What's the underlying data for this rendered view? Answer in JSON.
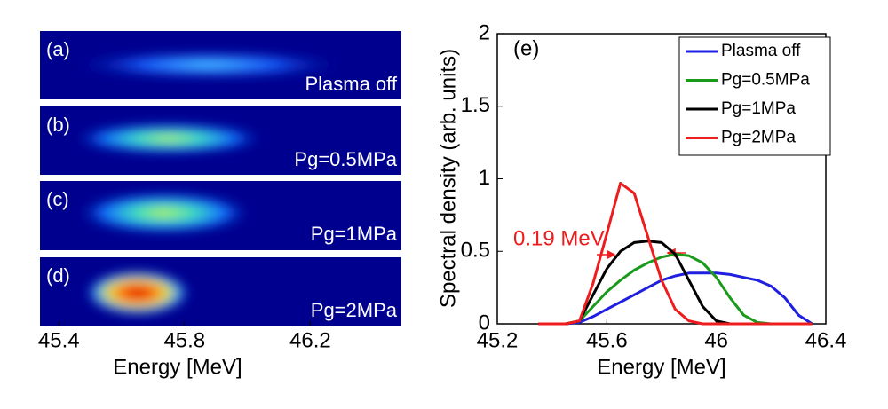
{
  "chart_data": [
    {
      "type": "image-strip",
      "panels": [
        {
          "label": "(a)",
          "caption": "Plasma off"
        },
        {
          "label": "(b)",
          "caption": "Pg=0.5MPa"
        },
        {
          "label": "(c)",
          "caption": "Pg=1MPa"
        },
        {
          "label": "(d)",
          "caption": "Pg=2MPa"
        }
      ],
      "xlabel": "Energy [MeV]",
      "xlim": [
        45.34,
        46.49
      ],
      "xticks": [
        45.4,
        45.8,
        46.2
      ]
    },
    {
      "type": "line",
      "panel_label": "(e)",
      "xlabel": "Energy [MeV]",
      "ylabel": "Spectral density (arb. units)",
      "xlim": [
        45.2,
        46.4
      ],
      "xticks": [
        45.2,
        45.6,
        46,
        46.4
      ],
      "ylim": [
        0,
        2
      ],
      "yticks": [
        0,
        0.5,
        1,
        1.5,
        2
      ],
      "legend": "upper right",
      "annotation": "0.19 MeV",
      "x": [
        45.35,
        45.4,
        45.45,
        45.5,
        45.55,
        45.6,
        45.65,
        45.7,
        45.75,
        45.8,
        45.85,
        45.9,
        45.95,
        46.0,
        46.05,
        46.1,
        46.15,
        46.2,
        46.25,
        46.3,
        46.35
      ],
      "series": [
        {
          "name": "Plasma off",
          "color": "#1f1fe0",
          "values": [
            0,
            0,
            0,
            0.01,
            0.05,
            0.1,
            0.15,
            0.2,
            0.25,
            0.3,
            0.33,
            0.35,
            0.35,
            0.35,
            0.34,
            0.32,
            0.3,
            0.26,
            0.18,
            0.06,
            0
          ]
        },
        {
          "name": "Pg=0.5MPa",
          "color": "#1a9a1a",
          "values": [
            0,
            0,
            0,
            0.02,
            0.12,
            0.22,
            0.3,
            0.37,
            0.42,
            0.46,
            0.48,
            0.47,
            0.42,
            0.32,
            0.18,
            0.06,
            0.01,
            0,
            0,
            0,
            0
          ]
        },
        {
          "name": "Pg=1MPa",
          "color": "#000000",
          "values": [
            0,
            0,
            0,
            0.02,
            0.2,
            0.38,
            0.5,
            0.56,
            0.57,
            0.56,
            0.48,
            0.3,
            0.12,
            0.02,
            0,
            0,
            0,
            0,
            0,
            0,
            0
          ]
        },
        {
          "name": "Pg=2MPa",
          "color": "#ee1c1c",
          "values": [
            0,
            0,
            0,
            0.02,
            0.28,
            0.62,
            0.97,
            0.9,
            0.6,
            0.3,
            0.1,
            0.02,
            0,
            0,
            0,
            0,
            0,
            0,
            0,
            0,
            0
          ]
        }
      ]
    }
  ]
}
